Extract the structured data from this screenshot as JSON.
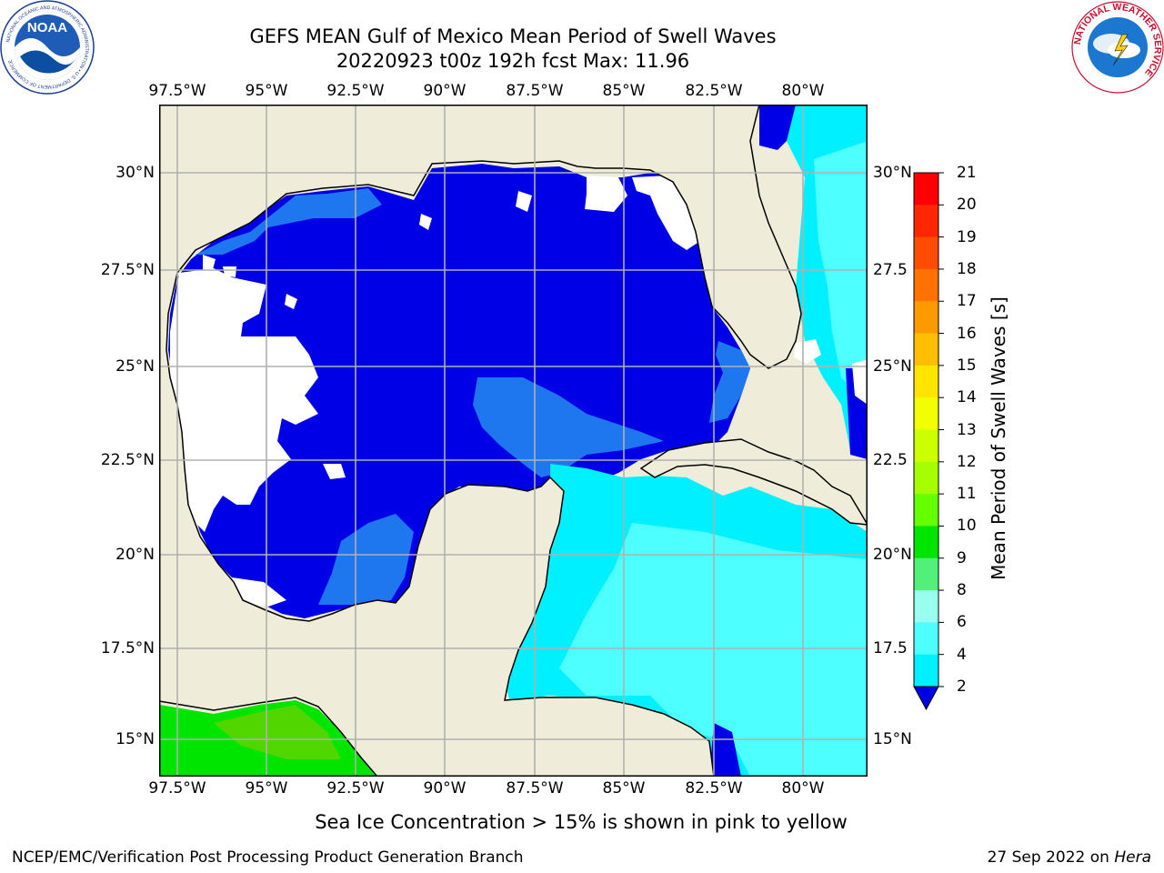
{
  "title": {
    "line1": "GEFS MEAN Gulf of Mexico Mean Period of Swell Waves",
    "line2": "20220923 t00z 192h fcst   Max: 11.96"
  },
  "logos": {
    "left": {
      "text": "NOAA",
      "ring_text": "NATIONAL OCEANIC AND ATMOSPHERIC ADMINISTRATION • U.S. DEPARTMENT OF COMMERCE"
    },
    "right": {
      "ring_text": "NATIONAL WEATHER SERVICE"
    }
  },
  "map": {
    "lon_ticks": [
      "97.5°W",
      "95°W",
      "92.5°W",
      "90°W",
      "87.5°W",
      "85°W",
      "82.5°W",
      "80°W"
    ],
    "lat_ticks": [
      "30°N",
      "27.5°N",
      "25°N",
      "22.5°N",
      "20°N",
      "17.5°N",
      "15°N"
    ],
    "lat_ticks_right": [
      "30°N",
      "27.5",
      "25°N",
      "22.5",
      "20°N",
      "17.5",
      "15°N"
    ],
    "land_color": "#efedda",
    "grid_color": "#b0b0b0"
  },
  "colorbar": {
    "title": "Mean Period of Swell Waves [s]",
    "labels": [
      "21",
      "20",
      "19",
      "18",
      "17",
      "16",
      "15",
      "14",
      "13",
      "12",
      "11",
      "10",
      "9",
      "8",
      "6",
      "4",
      "2"
    ],
    "colors": [
      "#ff0000",
      "#ff2600",
      "#ff4c00",
      "#ff7200",
      "#ff9900",
      "#ffbf00",
      "#ffe500",
      "#f2ff00",
      "#ccff00",
      "#a5ff00",
      "#66ff00",
      "#00e500",
      "#52f07a",
      "#99ffee",
      "#4dffff",
      "#00f0ff",
      "#0080ff"
    ],
    "under_color": "#0000e6"
  },
  "note": "Sea Ice Concentration > 15% is shown in pink to yellow",
  "footer": {
    "left": "NCEP/EMC/Verification Post Processing Product Generation Branch",
    "right_date": "27 Sep 2022 on ",
    "right_host": "Hera"
  }
}
